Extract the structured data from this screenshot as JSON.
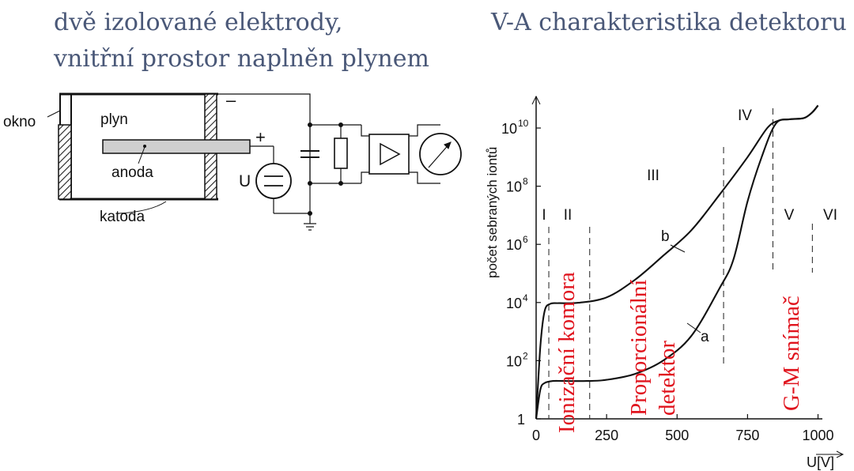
{
  "heading": {
    "line1": "dvě izolované elektrody,",
    "line2": "vnitřní prostor naplněn plynem",
    "right": "V-A charakteristika detektoru"
  },
  "schematic": {
    "okno": "okno",
    "plyn": "plyn",
    "anoda": "anoda",
    "katoda": "katoda",
    "minus": "–",
    "plus": "+",
    "u": "U"
  },
  "chart": {
    "ylabel": "počet sebraných iontů",
    "xlabel": "U[V]",
    "yticks": [
      {
        "base": "1",
        "exp": "",
        "v": 0
      },
      {
        "base": "10",
        "exp": "2",
        "v": 2
      },
      {
        "base": "10",
        "exp": "4",
        "v": 4
      },
      {
        "base": "10",
        "exp": "6",
        "v": 6
      },
      {
        "base": "10",
        "exp": "8",
        "v": 8
      },
      {
        "base": "10",
        "exp": "10",
        "v": 10
      }
    ],
    "xticks": [
      {
        "label": "0",
        "v": 0
      },
      {
        "label": "250",
        "v": 250
      },
      {
        "label": "500",
        "v": 500
      },
      {
        "label": "750",
        "v": 750
      },
      {
        "label": "1000",
        "v": 1000
      }
    ],
    "regions": [
      "I",
      "II",
      "III",
      "IV",
      "V",
      "VI"
    ],
    "curve_labels": {
      "b": "b",
      "a": "a"
    },
    "annotations": {
      "ion": "Ionizační komora",
      "prop1": "Proporcionální",
      "prop2": "detektor",
      "gm": "G-M snímač"
    },
    "colors": {
      "annotation": "#e0141e",
      "title": "#4a5878"
    }
  },
  "chart_data": {
    "type": "line",
    "xlabel": "U[V]",
    "ylabel": "počet sebraných iontů",
    "ylog": true,
    "xlim": [
      0,
      1050
    ],
    "ylim": [
      1,
      50000000000
    ],
    "series": [
      {
        "name": "b",
        "x": [
          0,
          15,
          30,
          50,
          80,
          150,
          250,
          350,
          450,
          550,
          650,
          750,
          820,
          860,
          900,
          950,
          980,
          1000
        ],
        "y": [
          1,
          300,
          5000,
          9000,
          9500,
          9800,
          15000,
          60000,
          400000,
          3000000,
          50000000,
          1000000000,
          10000000000,
          18000000000,
          20000000000,
          22000000000,
          35000000000,
          60000000000
        ]
      },
      {
        "name": "a",
        "x": [
          0,
          15,
          30,
          60,
          100,
          180,
          250,
          350,
          450,
          550,
          650,
          700,
          750,
          800,
          850,
          900,
          950,
          980,
          1000
        ],
        "y": [
          1,
          10,
          17,
          20,
          20,
          20,
          22,
          35,
          100,
          700,
          30000,
          300000,
          30000000,
          1000000000,
          14000000000,
          20000000000,
          22000000000,
          35000000000,
          60000000000
        ]
      }
    ],
    "boundaries": [
      45,
      190,
      665,
      840,
      980
    ]
  }
}
